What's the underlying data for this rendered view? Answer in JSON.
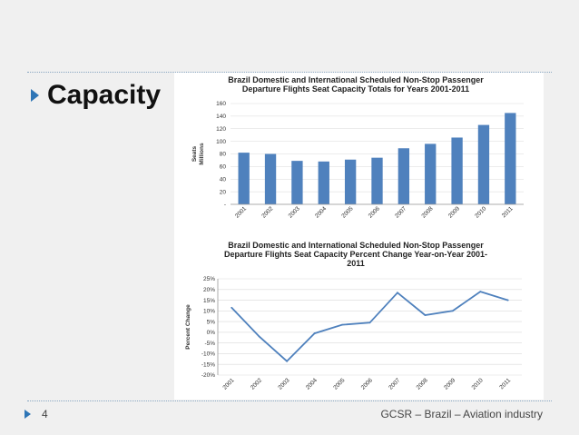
{
  "slide": {
    "heading": "Capacity",
    "page_number": "4",
    "footer": "GCSR – Brazil – Aviation industry",
    "accent_color": "#2e75b6",
    "bullet_icon": "triangle-right-icon"
  },
  "chart_data": [
    {
      "type": "bar",
      "title_lines": [
        "Brazil Domestic and International  Scheduled Non-Stop Passenger",
        "Departure Flights Seat Capacity Totals for Years 2001-2011"
      ],
      "ylabel_lines": [
        "Seats",
        "Millions"
      ],
      "xlabel": "",
      "categories": [
        "2001",
        "2002",
        "2003",
        "2004",
        "2005",
        "2006",
        "2007",
        "2008",
        "2009",
        "2010",
        "2011"
      ],
      "values": [
        82,
        80,
        69,
        68,
        71,
        74,
        89,
        96,
        106,
        126,
        145
      ],
      "ylim": [
        0,
        160
      ],
      "yticks": [
        0,
        20,
        40,
        60,
        80,
        100,
        120,
        140,
        160
      ],
      "ytick_labels": [
        "-",
        "20",
        "40",
        "60",
        "80",
        "100",
        "120",
        "140",
        "160"
      ],
      "bar_color": "#4f81bd",
      "grid": true
    },
    {
      "type": "line",
      "title_lines": [
        "Brazil Domestic and International Scheduled Non-Stop Passenger",
        "Departure Flights Seat Capacity Percent Change Year-on-Year 2001-",
        "2011"
      ],
      "ylabel": "Percent Change",
      "xlabel": "",
      "categories": [
        "2001",
        "2002",
        "2003",
        "2004",
        "2005",
        "2006",
        "2007",
        "2008",
        "2009",
        "2010",
        "2011"
      ],
      "values": [
        11.5,
        -2,
        -13.5,
        -0.5,
        3.5,
        4.5,
        18.5,
        8,
        10,
        19,
        15
      ],
      "ylim": [
        -20,
        25
      ],
      "yticks": [
        -20,
        -15,
        -10,
        -5,
        0,
        5,
        10,
        15,
        20,
        25
      ],
      "ytick_labels": [
        "-20%",
        "-15%",
        "-10%",
        "-5%",
        "0%",
        "5%",
        "10%",
        "15%",
        "20%",
        "25%"
      ],
      "line_color": "#4f81bd",
      "grid": true
    }
  ]
}
